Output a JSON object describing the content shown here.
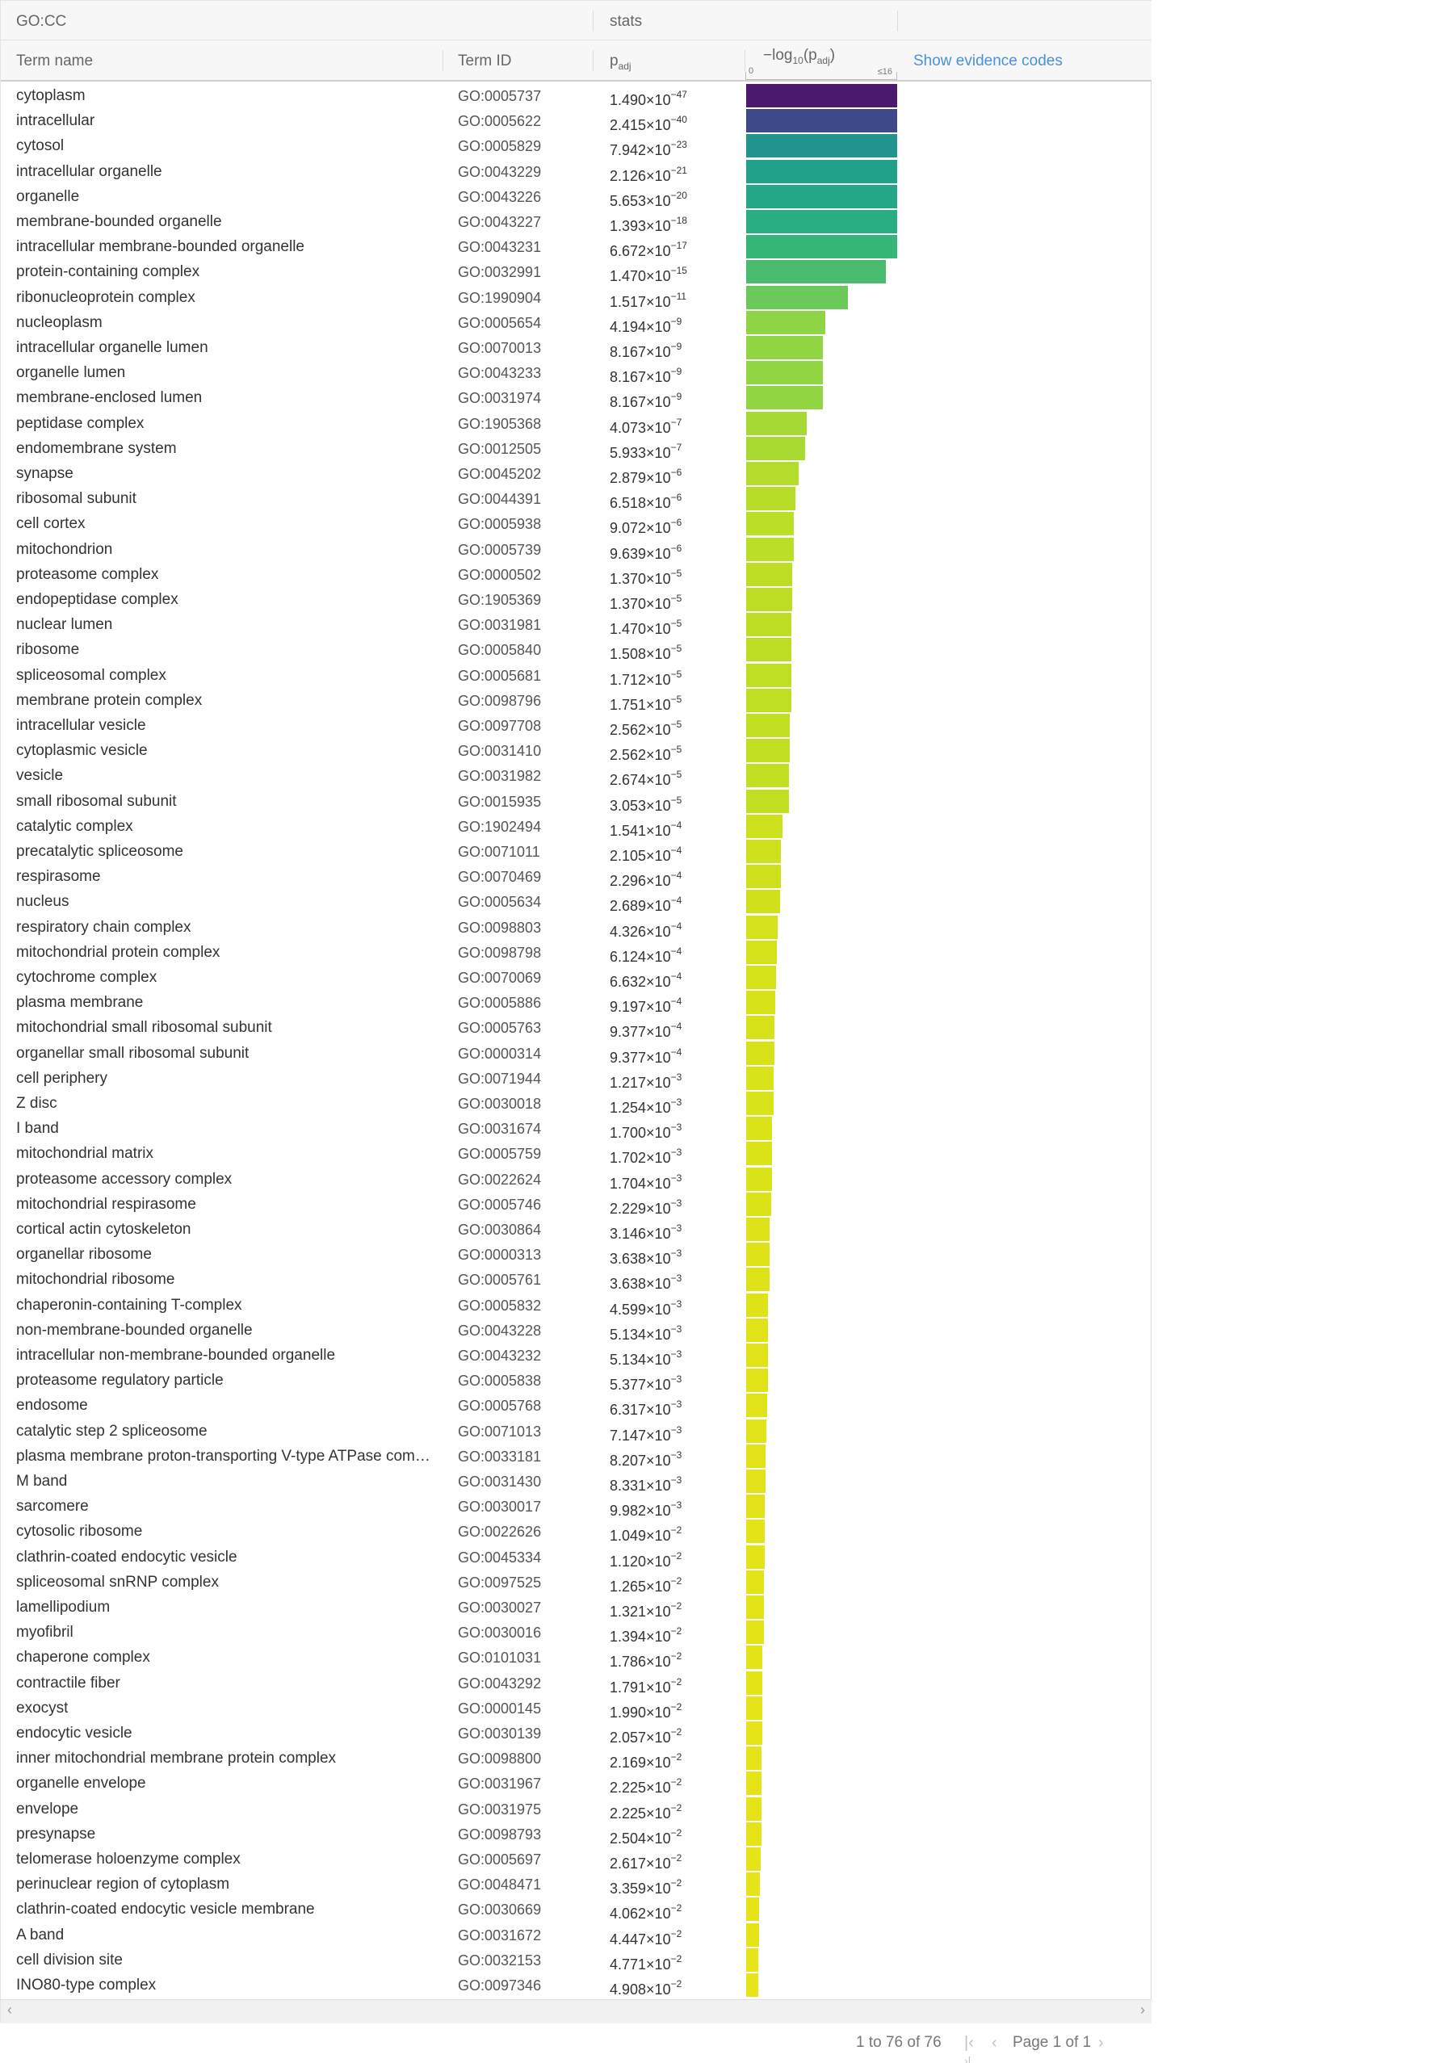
{
  "header": {
    "group_label": "GO:CC",
    "stats_label": "stats",
    "col_term_name": "Term name",
    "col_term_id": "Term ID",
    "col_padj_main": "p",
    "col_padj_sub": "adj",
    "log_label_prefix": "−log",
    "log_label_sub": "10",
    "log_label_mid": "(p",
    "log_label_sub2": "adj",
    "log_label_suffix": ")",
    "log_axis_min": "0",
    "log_axis_max": "≤16",
    "evidence_link": "Show evidence codes"
  },
  "colors": {
    "link": "#4a90e2",
    "bar_top": "#4b1a6e"
  },
  "log_scale_max": 16,
  "rows": [
    {
      "name": "cytoplasm",
      "id": "GO:0005737",
      "mant": "1.490",
      "exp": "-47",
      "neglog": 46.83,
      "color": "#4b1a6e"
    },
    {
      "name": "intracellular",
      "id": "GO:0005622",
      "mant": "2.415",
      "exp": "-40",
      "neglog": 39.62,
      "color": "#3d4989"
    },
    {
      "name": "cytosol",
      "id": "GO:0005829",
      "mant": "7.942",
      "exp": "-23",
      "neglog": 22.1,
      "color": "#21958d"
    },
    {
      "name": "intracellular organelle",
      "id": "GO:0043229",
      "mant": "2.126",
      "exp": "-21",
      "neglog": 20.67,
      "color": "#21a08a"
    },
    {
      "name": "organelle",
      "id": "GO:0043226",
      "mant": "5.653",
      "exp": "-20",
      "neglog": 19.25,
      "color": "#23a786"
    },
    {
      "name": "membrane-bounded organelle",
      "id": "GO:0043227",
      "mant": "1.393",
      "exp": "-18",
      "neglog": 17.86,
      "color": "#29ad82"
    },
    {
      "name": "intracellular membrane-bounded organelle",
      "id": "GO:0043231",
      "mant": "6.672",
      "exp": "-17",
      "neglog": 16.18,
      "color": "#36b579"
    },
    {
      "name": "protein-containing complex",
      "id": "GO:0032991",
      "mant": "1.470",
      "exp": "-15",
      "neglog": 14.83,
      "color": "#48bb6f"
    },
    {
      "name": "ribonucleoprotein complex",
      "id": "GO:1990904",
      "mant": "1.517",
      "exp": "-11",
      "neglog": 10.82,
      "color": "#6ac95a"
    },
    {
      "name": "nucleoplasm",
      "id": "GO:0005654",
      "mant": "4.194",
      "exp": "-9",
      "neglog": 8.38,
      "color": "#8fd444"
    },
    {
      "name": "intracellular organelle lumen",
      "id": "GO:0070013",
      "mant": "8.167",
      "exp": "-9",
      "neglog": 8.09,
      "color": "#92d542"
    },
    {
      "name": "organelle lumen",
      "id": "GO:0043233",
      "mant": "8.167",
      "exp": "-9",
      "neglog": 8.09,
      "color": "#92d542"
    },
    {
      "name": "membrane-enclosed lumen",
      "id": "GO:0031974",
      "mant": "8.167",
      "exp": "-9",
      "neglog": 8.09,
      "color": "#92d542"
    },
    {
      "name": "peptidase complex",
      "id": "GO:1905368",
      "mant": "4.073",
      "exp": "-7",
      "neglog": 6.39,
      "color": "#a6d934"
    },
    {
      "name": "endomembrane system",
      "id": "GO:0012505",
      "mant": "5.933",
      "exp": "-7",
      "neglog": 6.23,
      "color": "#a8da33"
    },
    {
      "name": "synapse",
      "id": "GO:0045202",
      "mant": "2.879",
      "exp": "-6",
      "neglog": 5.54,
      "color": "#b3dc2c"
    },
    {
      "name": "ribosomal subunit",
      "id": "GO:0044391",
      "mant": "6.518",
      "exp": "-6",
      "neglog": 5.19,
      "color": "#b8dd28"
    },
    {
      "name": "cell cortex",
      "id": "GO:0005938",
      "mant": "9.072",
      "exp": "-6",
      "neglog": 5.04,
      "color": "#bbde27"
    },
    {
      "name": "mitochondrion",
      "id": "GO:0005739",
      "mant": "9.639",
      "exp": "-6",
      "neglog": 5.02,
      "color": "#bbde27"
    },
    {
      "name": "proteasome complex",
      "id": "GO:0000502",
      "mant": "1.370",
      "exp": "-5",
      "neglog": 4.86,
      "color": "#bede25"
    },
    {
      "name": "endopeptidase complex",
      "id": "GO:1905369",
      "mant": "1.370",
      "exp": "-5",
      "neglog": 4.86,
      "color": "#bede25"
    },
    {
      "name": "nuclear lumen",
      "id": "GO:0031981",
      "mant": "1.470",
      "exp": "-5",
      "neglog": 4.83,
      "color": "#bede25"
    },
    {
      "name": "ribosome",
      "id": "GO:0005840",
      "mant": "1.508",
      "exp": "-5",
      "neglog": 4.82,
      "color": "#bede25"
    },
    {
      "name": "spliceosomal complex",
      "id": "GO:0005681",
      "mant": "1.712",
      "exp": "-5",
      "neglog": 4.77,
      "color": "#bfdf24"
    },
    {
      "name": "membrane protein complex",
      "id": "GO:0098796",
      "mant": "1.751",
      "exp": "-5",
      "neglog": 4.76,
      "color": "#bfdf24"
    },
    {
      "name": "intracellular vesicle",
      "id": "GO:0097708",
      "mant": "2.562",
      "exp": "-5",
      "neglog": 4.59,
      "color": "#c2df22"
    },
    {
      "name": "cytoplasmic vesicle",
      "id": "GO:0031410",
      "mant": "2.562",
      "exp": "-5",
      "neglog": 4.59,
      "color": "#c2df22"
    },
    {
      "name": "vesicle",
      "id": "GO:0031982",
      "mant": "2.674",
      "exp": "-5",
      "neglog": 4.57,
      "color": "#c2df22"
    },
    {
      "name": "small ribosomal subunit",
      "id": "GO:0015935",
      "mant": "3.053",
      "exp": "-5",
      "neglog": 4.52,
      "color": "#c3df21"
    },
    {
      "name": "catalytic complex",
      "id": "GO:1902494",
      "mant": "1.541",
      "exp": "-4",
      "neglog": 3.81,
      "color": "#cde11d"
    },
    {
      "name": "precatalytic spliceosome",
      "id": "GO:0071011",
      "mant": "2.105",
      "exp": "-4",
      "neglog": 3.68,
      "color": "#cfe11c"
    },
    {
      "name": "respirasome",
      "id": "GO:0070469",
      "mant": "2.296",
      "exp": "-4",
      "neglog": 3.64,
      "color": "#cfe11c"
    },
    {
      "name": "nucleus",
      "id": "GO:0005634",
      "mant": "2.689",
      "exp": "-4",
      "neglog": 3.57,
      "color": "#d0e11c"
    },
    {
      "name": "respiratory chain complex",
      "id": "GO:0098803",
      "mant": "4.326",
      "exp": "-4",
      "neglog": 3.36,
      "color": "#d3e21b"
    },
    {
      "name": "mitochondrial protein complex",
      "id": "GO:0098798",
      "mant": "6.124",
      "exp": "-4",
      "neglog": 3.21,
      "color": "#d5e21a"
    },
    {
      "name": "cytochrome complex",
      "id": "GO:0070069",
      "mant": "6.632",
      "exp": "-4",
      "neglog": 3.18,
      "color": "#d5e21a"
    },
    {
      "name": "plasma membrane",
      "id": "GO:0005886",
      "mant": "9.197",
      "exp": "-4",
      "neglog": 3.04,
      "color": "#d7e219"
    },
    {
      "name": "mitochondrial small ribosomal subunit",
      "id": "GO:0005763",
      "mant": "9.377",
      "exp": "-4",
      "neglog": 3.03,
      "color": "#d7e219"
    },
    {
      "name": "organellar small ribosomal subunit",
      "id": "GO:0000314",
      "mant": "9.377",
      "exp": "-4",
      "neglog": 3.03,
      "color": "#d7e219"
    },
    {
      "name": "cell periphery",
      "id": "GO:0071944",
      "mant": "1.217",
      "exp": "-3",
      "neglog": 2.91,
      "color": "#d9e319"
    },
    {
      "name": "Z disc",
      "id": "GO:0030018",
      "mant": "1.254",
      "exp": "-3",
      "neglog": 2.9,
      "color": "#d9e319"
    },
    {
      "name": "I band",
      "id": "GO:0031674",
      "mant": "1.700",
      "exp": "-3",
      "neglog": 2.77,
      "color": "#dae318"
    },
    {
      "name": "mitochondrial matrix",
      "id": "GO:0005759",
      "mant": "1.702",
      "exp": "-3",
      "neglog": 2.77,
      "color": "#dae318"
    },
    {
      "name": "proteasome accessory complex",
      "id": "GO:0022624",
      "mant": "1.704",
      "exp": "-3",
      "neglog": 2.77,
      "color": "#dae318"
    },
    {
      "name": "mitochondrial respirasome",
      "id": "GO:0005746",
      "mant": "2.229",
      "exp": "-3",
      "neglog": 2.65,
      "color": "#dbe318"
    },
    {
      "name": "cortical actin cytoskeleton",
      "id": "GO:0030864",
      "mant": "3.146",
      "exp": "-3",
      "neglog": 2.5,
      "color": "#dde318"
    },
    {
      "name": "organellar ribosome",
      "id": "GO:0000313",
      "mant": "3.638",
      "exp": "-3",
      "neglog": 2.44,
      "color": "#dde318"
    },
    {
      "name": "mitochondrial ribosome",
      "id": "GO:0005761",
      "mant": "3.638",
      "exp": "-3",
      "neglog": 2.44,
      "color": "#dde318"
    },
    {
      "name": "chaperonin-containing T-complex",
      "id": "GO:0005832",
      "mant": "4.599",
      "exp": "-3",
      "neglog": 2.34,
      "color": "#dee318"
    },
    {
      "name": "non-membrane-bounded organelle",
      "id": "GO:0043228",
      "mant": "5.134",
      "exp": "-3",
      "neglog": 2.29,
      "color": "#dfe318"
    },
    {
      "name": "intracellular non-membrane-bounded organelle",
      "id": "GO:0043232",
      "mant": "5.134",
      "exp": "-3",
      "neglog": 2.29,
      "color": "#dfe318"
    },
    {
      "name": "proteasome regulatory particle",
      "id": "GO:0005838",
      "mant": "5.377",
      "exp": "-3",
      "neglog": 2.27,
      "color": "#dfe318"
    },
    {
      "name": "endosome",
      "id": "GO:0005768",
      "mant": "6.317",
      "exp": "-3",
      "neglog": 2.2,
      "color": "#e0e318"
    },
    {
      "name": "catalytic step 2 spliceosome",
      "id": "GO:0071013",
      "mant": "7.147",
      "exp": "-3",
      "neglog": 2.15,
      "color": "#e0e318"
    },
    {
      "name": "plasma membrane proton-transporting V-type ATPase com…",
      "id": "GO:0033181",
      "mant": "8.207",
      "exp": "-3",
      "neglog": 2.09,
      "color": "#e1e318"
    },
    {
      "name": "M band",
      "id": "GO:0031430",
      "mant": "8.331",
      "exp": "-3",
      "neglog": 2.08,
      "color": "#e1e318"
    },
    {
      "name": "sarcomere",
      "id": "GO:0030017",
      "mant": "9.982",
      "exp": "-3",
      "neglog": 2.0,
      "color": "#e1e318"
    },
    {
      "name": "cytosolic ribosome",
      "id": "GO:0022626",
      "mant": "1.049",
      "exp": "-2",
      "neglog": 1.98,
      "color": "#e2e418"
    },
    {
      "name": "clathrin-coated endocytic vesicle",
      "id": "GO:0045334",
      "mant": "1.120",
      "exp": "-2",
      "neglog": 1.95,
      "color": "#e2e418"
    },
    {
      "name": "spliceosomal snRNP complex",
      "id": "GO:0097525",
      "mant": "1.265",
      "exp": "-2",
      "neglog": 1.9,
      "color": "#e2e418"
    },
    {
      "name": "lamellipodium",
      "id": "GO:0030027",
      "mant": "1.321",
      "exp": "-2",
      "neglog": 1.88,
      "color": "#e2e418"
    },
    {
      "name": "myofibril",
      "id": "GO:0030016",
      "mant": "1.394",
      "exp": "-2",
      "neglog": 1.86,
      "color": "#e3e418"
    },
    {
      "name": "chaperone complex",
      "id": "GO:0101031",
      "mant": "1.786",
      "exp": "-2",
      "neglog": 1.75,
      "color": "#e3e418"
    },
    {
      "name": "contractile fiber",
      "id": "GO:0043292",
      "mant": "1.791",
      "exp": "-2",
      "neglog": 1.75,
      "color": "#e3e418"
    },
    {
      "name": "exocyst",
      "id": "GO:0000145",
      "mant": "1.990",
      "exp": "-2",
      "neglog": 1.7,
      "color": "#e4e418"
    },
    {
      "name": "endocytic vesicle",
      "id": "GO:0030139",
      "mant": "2.057",
      "exp": "-2",
      "neglog": 1.69,
      "color": "#e4e418"
    },
    {
      "name": "inner mitochondrial membrane protein complex",
      "id": "GO:0098800",
      "mant": "2.169",
      "exp": "-2",
      "neglog": 1.66,
      "color": "#e4e418"
    },
    {
      "name": "organelle envelope",
      "id": "GO:0031967",
      "mant": "2.225",
      "exp": "-2",
      "neglog": 1.65,
      "color": "#e4e418"
    },
    {
      "name": "envelope",
      "id": "GO:0031975",
      "mant": "2.225",
      "exp": "-2",
      "neglog": 1.65,
      "color": "#e4e418"
    },
    {
      "name": "presynapse",
      "id": "GO:0098793",
      "mant": "2.504",
      "exp": "-2",
      "neglog": 1.6,
      "color": "#e5e418"
    },
    {
      "name": "telomerase holoenzyme complex",
      "id": "GO:0005697",
      "mant": "2.617",
      "exp": "-2",
      "neglog": 1.58,
      "color": "#e5e418"
    },
    {
      "name": "perinuclear region of cytoplasm",
      "id": "GO:0048471",
      "mant": "3.359",
      "exp": "-2",
      "neglog": 1.47,
      "color": "#e6e419"
    },
    {
      "name": "clathrin-coated endocytic vesicle membrane",
      "id": "GO:0030669",
      "mant": "4.062",
      "exp": "-2",
      "neglog": 1.39,
      "color": "#e6e419"
    },
    {
      "name": "A band",
      "id": "GO:0031672",
      "mant": "4.447",
      "exp": "-2",
      "neglog": 1.35,
      "color": "#e6e419"
    },
    {
      "name": "cell division site",
      "id": "GO:0032153",
      "mant": "4.771",
      "exp": "-2",
      "neglog": 1.32,
      "color": "#e7e419"
    },
    {
      "name": "INO80-type complex",
      "id": "GO:0097346",
      "mant": "4.908",
      "exp": "-2",
      "neglog": 1.31,
      "color": "#e7e419"
    }
  ],
  "pager": {
    "summary": "1 to 76 of 76",
    "page_text": "Page 1 of 1",
    "first_icon": "first-page-icon",
    "prev_icon": "prev-page-icon",
    "next_icon": "next-page-icon",
    "last_icon": "last-page-icon"
  },
  "scrollbar": {
    "left_arrow": "‹",
    "right_arrow": "›"
  }
}
